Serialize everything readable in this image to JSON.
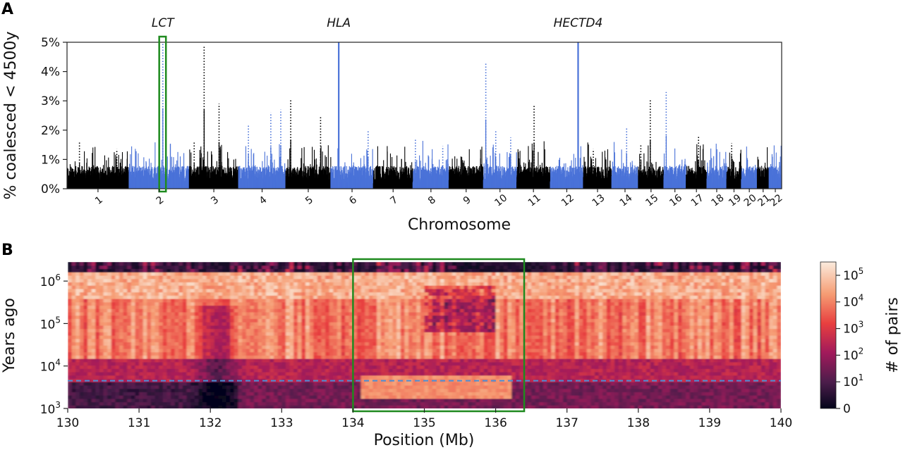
{
  "chart_data": [
    {
      "panel": "A",
      "type": "scatter",
      "title": "",
      "xlabel": "Chromosome",
      "ylabel": "% coalesced  < 4500y",
      "ylim": [
        0,
        5
      ],
      "yticks": [
        0,
        1,
        2,
        3,
        4,
        5
      ],
      "ytick_labels": [
        "0%",
        "1%",
        "2%",
        "3%",
        "4%",
        "5%"
      ],
      "chromosomes": [
        "1",
        "2",
        "3",
        "4",
        "5",
        "6",
        "7",
        "8",
        "9",
        "10",
        "11",
        "12",
        "13",
        "14",
        "15",
        "16",
        "17",
        "18",
        "19",
        "20",
        "21",
        "22"
      ],
      "chromosome_lengths_mb": [
        249,
        242,
        198,
        190,
        181,
        171,
        159,
        145,
        138,
        134,
        135,
        133,
        114,
        107,
        102,
        90,
        83,
        80,
        59,
        64,
        47,
        51
      ],
      "series_colors": {
        "odd": "#000000",
        "even": "#4a72d8"
      },
      "annotations": [
        {
          "text": "LCT",
          "chromosome": "2",
          "position_mb": 136
        },
        {
          "text": "HLA",
          "chromosome": "6",
          "position_mb": 32
        },
        {
          "text": "HECTD4",
          "chromosome": "12",
          "position_mb": 112
        }
      ],
      "highlight_box": {
        "chromosome": "2",
        "from_mb": 130,
        "to_mb": 140,
        "color": "#1f8a1f"
      },
      "baseline_percent": 0.6,
      "peaks": [
        {
          "chromosome": "1",
          "position_mb": 50,
          "value": 1.6
        },
        {
          "chromosome": "1",
          "position_mb": 200,
          "value": 1.35
        },
        {
          "chromosome": "2",
          "position_mb": 136,
          "value": 5.0
        },
        {
          "chromosome": "3",
          "position_mb": 20,
          "value": 1.6
        },
        {
          "chromosome": "3",
          "position_mb": 60,
          "value": 4.9
        },
        {
          "chromosome": "3",
          "position_mb": 120,
          "value": 2.9
        },
        {
          "chromosome": "4",
          "position_mb": 40,
          "value": 2.2
        },
        {
          "chromosome": "4",
          "position_mb": 130,
          "value": 2.6
        },
        {
          "chromosome": "4",
          "position_mb": 170,
          "value": 2.7
        },
        {
          "chromosome": "5",
          "position_mb": 20,
          "value": 3.05
        },
        {
          "chromosome": "5",
          "position_mb": 140,
          "value": 2.45
        },
        {
          "chromosome": "6",
          "position_mb": 32,
          "value": 5.0
        },
        {
          "chromosome": "6",
          "position_mb": 150,
          "value": 2.0
        },
        {
          "chromosome": "8",
          "position_mb": 10,
          "value": 1.7
        },
        {
          "chromosome": "8",
          "position_mb": 120,
          "value": 1.45
        },
        {
          "chromosome": "10",
          "position_mb": 10,
          "value": 4.3
        },
        {
          "chromosome": "10",
          "position_mb": 50,
          "value": 2.0
        },
        {
          "chromosome": "10",
          "position_mb": 110,
          "value": 1.75
        },
        {
          "chromosome": "11",
          "position_mb": 70,
          "value": 2.85
        },
        {
          "chromosome": "12",
          "position_mb": 112,
          "value": 5.0
        },
        {
          "chromosome": "13",
          "position_mb": 40,
          "value": 1.35
        },
        {
          "chromosome": "14",
          "position_mb": 60,
          "value": 2.1
        },
        {
          "chromosome": "15",
          "position_mb": 10,
          "value": 1.5
        },
        {
          "chromosome": "15",
          "position_mb": 48,
          "value": 3.05
        },
        {
          "chromosome": "16",
          "position_mb": 10,
          "value": 3.3
        },
        {
          "chromosome": "17",
          "position_mb": 50,
          "value": 1.8
        },
        {
          "chromosome": "19",
          "position_mb": 20,
          "value": 1.55
        }
      ]
    },
    {
      "panel": "B",
      "type": "heatmap",
      "title": "",
      "xlabel": "Position (Mb)",
      "ylabel": "Years ago",
      "xlim": [
        130,
        140
      ],
      "xticks": [
        130,
        131,
        132,
        133,
        134,
        135,
        136,
        137,
        138,
        139,
        140
      ],
      "ylim_log10": [
        3,
        6.45
      ],
      "yticks": [
        {
          "base": "10",
          "exp": "3",
          "log10": 3
        },
        {
          "base": "10",
          "exp": "4",
          "log10": 4
        },
        {
          "base": "10",
          "exp": "5",
          "log10": 5
        },
        {
          "base": "10",
          "exp": "6",
          "log10": 6
        }
      ],
      "dashed_line_years": 4500,
      "dashed_line_color": "#4a8fd6",
      "highlight_box": {
        "from_mb": 134.0,
        "to_mb": 136.4,
        "color": "#1f8a1f"
      },
      "colorbar": {
        "label": "# of pairs",
        "ticks": [
          {
            "base": "0",
            "exp": "",
            "log10": 0
          },
          {
            "base": "10",
            "exp": "1",
            "log10": 1
          },
          {
            "base": "10",
            "exp": "2",
            "log10": 2
          },
          {
            "base": "10",
            "exp": "3",
            "log10": 3
          },
          {
            "base": "10",
            "exp": "4",
            "log10": 4
          },
          {
            "base": "10",
            "exp": "5",
            "log10": 5
          }
        ],
        "range_log10": [
          0,
          5.5
        ],
        "colors": [
          "#03051a",
          "#4c1d4b",
          "#a11a5b",
          "#e83f3f",
          "#f69c73",
          "#faebdd"
        ]
      }
    }
  ],
  "panel_labels": {
    "a": "A",
    "b": "B"
  }
}
